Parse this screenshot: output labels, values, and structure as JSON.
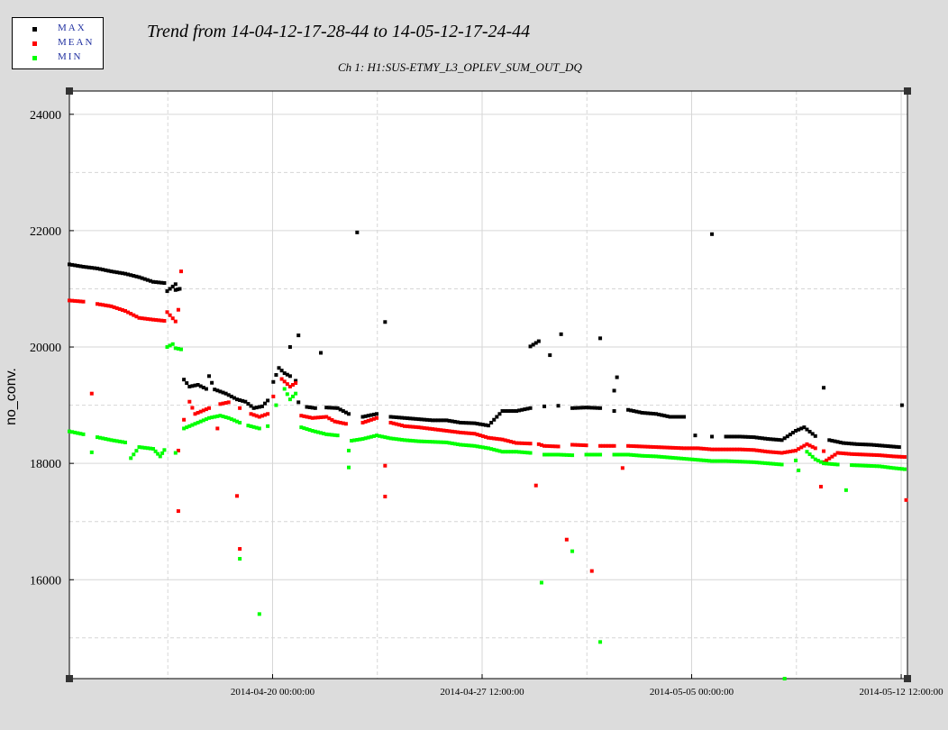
{
  "legend": [
    {
      "label": "MAX",
      "color": "#000000"
    },
    {
      "label": "MEAN",
      "color": "#ff0000"
    },
    {
      "label": "MIN",
      "color": "#00ff00"
    }
  ],
  "chart_data": {
    "type": "scatter",
    "title": "Trend from 14-04-12-17-28-44 to 14-05-12-17-24-44",
    "subtitle": "Ch 1: H1:SUS-ETMY_L3_OPLEV_SUM_OUT_DQ",
    "xlabel": "",
    "ylabel": "no_conv.",
    "x_unit": "days since 2014-04-12 17:28:44",
    "xlim": [
      0,
      29.997
    ],
    "ylim": [
      14300,
      24400
    ],
    "grid": true,
    "legend_position": "top-left",
    "y_ticks": [
      16000,
      18000,
      20000,
      22000,
      24000
    ],
    "x_ticks": [
      {
        "x": 7.273,
        "label": "2014-04-20 00:00:00"
      },
      {
        "x": 14.773,
        "label": "2014-04-27 12:00:00"
      },
      {
        "x": 22.273,
        "label": "2014-05-05 00:00:00"
      },
      {
        "x": 29.773,
        "label": "2014-05-12 12:00:00"
      }
    ],
    "series": [
      {
        "name": "MAX",
        "color": "#000000",
        "points": [
          [
            0.0,
            21420
          ],
          [
            0.5,
            21380
          ],
          [
            1.0,
            21350
          ],
          [
            1.5,
            21300
          ],
          [
            2.0,
            21260
          ],
          [
            2.5,
            21200
          ],
          [
            3.0,
            21120
          ],
          [
            3.4,
            21100
          ],
          [
            3.8,
            21080
          ],
          [
            3.5,
            20960
          ],
          [
            3.8,
            20980
          ],
          [
            3.95,
            21000
          ],
          [
            4.1,
            19440
          ],
          [
            4.3,
            19320
          ],
          [
            4.6,
            19350
          ],
          [
            4.9,
            19280
          ],
          [
            5.2,
            19270
          ],
          [
            5.6,
            19200
          ],
          [
            6.0,
            19100
          ],
          [
            6.3,
            19060
          ],
          [
            6.6,
            18950
          ],
          [
            6.9,
            18980
          ],
          [
            7.1,
            19080
          ],
          [
            7.3,
            19400
          ],
          [
            7.5,
            19640
          ],
          [
            7.7,
            19550
          ],
          [
            7.9,
            19500
          ],
          [
            8.1,
            19420
          ],
          [
            8.2,
            19050
          ],
          [
            8.5,
            18970
          ],
          [
            8.8,
            18950
          ],
          [
            9.2,
            18960
          ],
          [
            9.6,
            18950
          ],
          [
            9.8,
            18900
          ],
          [
            10.0,
            18850
          ],
          [
            10.5,
            18800
          ],
          [
            11.0,
            18850
          ],
          [
            11.5,
            18800
          ],
          [
            12.0,
            18780
          ],
          [
            12.5,
            18760
          ],
          [
            13.0,
            18740
          ],
          [
            13.5,
            18740
          ],
          [
            14.0,
            18700
          ],
          [
            14.5,
            18690
          ],
          [
            15.0,
            18650
          ],
          [
            15.5,
            18900
          ],
          [
            16.0,
            18900
          ],
          [
            16.5,
            18950
          ],
          [
            17.0,
            18980
          ],
          [
            17.5,
            18990
          ],
          [
            18.0,
            18950
          ],
          [
            18.5,
            18960
          ],
          [
            19.0,
            18950
          ],
          [
            19.5,
            18900
          ],
          [
            20.0,
            18920
          ],
          [
            20.5,
            18870
          ],
          [
            21.0,
            18850
          ],
          [
            21.5,
            18800
          ],
          [
            22.0,
            18800
          ],
          [
            22.4,
            18480
          ],
          [
            23.0,
            18460
          ],
          [
            23.5,
            18460
          ],
          [
            24.0,
            18460
          ],
          [
            24.5,
            18450
          ],
          [
            25.0,
            18420
          ],
          [
            25.5,
            18400
          ],
          [
            26.0,
            18560
          ],
          [
            26.3,
            18620
          ],
          [
            26.7,
            18470
          ],
          [
            27.2,
            18400
          ],
          [
            27.7,
            18350
          ],
          [
            28.2,
            18330
          ],
          [
            28.7,
            18320
          ],
          [
            29.2,
            18300
          ],
          [
            29.7,
            18280
          ],
          [
            5.0,
            19500
          ],
          [
            7.9,
            20000
          ],
          [
            8.2,
            20200
          ],
          [
            9.0,
            19900
          ],
          [
            10.3,
            21970
          ],
          [
            11.3,
            20430
          ],
          [
            16.5,
            20010
          ],
          [
            16.8,
            20100
          ],
          [
            17.2,
            19860
          ],
          [
            17.6,
            20220
          ],
          [
            19.0,
            20150
          ],
          [
            19.6,
            19480
          ],
          [
            23.0,
            21940
          ],
          [
            27.0,
            19300
          ],
          [
            19.5,
            19250
          ],
          [
            29.8,
            19000
          ]
        ]
      },
      {
        "name": "MEAN",
        "color": "#ff0000",
        "points": [
          [
            0.0,
            20800
          ],
          [
            0.5,
            20780
          ],
          [
            1.0,
            20740
          ],
          [
            1.5,
            20700
          ],
          [
            2.0,
            20620
          ],
          [
            2.5,
            20500
          ],
          [
            3.0,
            20470
          ],
          [
            3.4,
            20450
          ],
          [
            3.8,
            20440
          ],
          [
            3.5,
            20600
          ],
          [
            3.9,
            20640
          ],
          [
            4.1,
            18750
          ],
          [
            4.5,
            18850
          ],
          [
            5.0,
            18950
          ],
          [
            5.4,
            19020
          ],
          [
            5.7,
            19050
          ],
          [
            6.1,
            18950
          ],
          [
            6.5,
            18850
          ],
          [
            6.8,
            18800
          ],
          [
            7.1,
            18850
          ],
          [
            7.3,
            19150
          ],
          [
            7.6,
            19450
          ],
          [
            7.9,
            19320
          ],
          [
            8.1,
            19380
          ],
          [
            8.3,
            18820
          ],
          [
            8.7,
            18780
          ],
          [
            9.2,
            18800
          ],
          [
            9.5,
            18720
          ],
          [
            9.9,
            18680
          ],
          [
            10.5,
            18700
          ],
          [
            11.0,
            18780
          ],
          [
            11.5,
            18700
          ],
          [
            12.0,
            18640
          ],
          [
            12.5,
            18620
          ],
          [
            13.0,
            18590
          ],
          [
            13.5,
            18560
          ],
          [
            14.0,
            18530
          ],
          [
            14.5,
            18510
          ],
          [
            15.0,
            18440
          ],
          [
            15.5,
            18410
          ],
          [
            16.0,
            18350
          ],
          [
            16.5,
            18340
          ],
          [
            17.0,
            18300
          ],
          [
            17.5,
            18290
          ],
          [
            18.0,
            18320
          ],
          [
            18.5,
            18310
          ],
          [
            19.0,
            18300
          ],
          [
            19.5,
            18300
          ],
          [
            20.0,
            18300
          ],
          [
            20.5,
            18290
          ],
          [
            21.0,
            18280
          ],
          [
            21.5,
            18270
          ],
          [
            22.0,
            18260
          ],
          [
            22.5,
            18260
          ],
          [
            23.0,
            18240
          ],
          [
            23.5,
            18240
          ],
          [
            24.0,
            18240
          ],
          [
            24.5,
            18230
          ],
          [
            25.0,
            18200
          ],
          [
            25.5,
            18180
          ],
          [
            26.0,
            18220
          ],
          [
            26.4,
            18330
          ],
          [
            26.7,
            18260
          ],
          [
            27.0,
            18210
          ],
          [
            27.5,
            18180
          ],
          [
            28.0,
            18160
          ],
          [
            28.5,
            18150
          ],
          [
            29.0,
            18140
          ],
          [
            29.5,
            18120
          ],
          [
            29.9,
            18110
          ],
          [
            0.8,
            19200
          ],
          [
            3.9,
            18220
          ],
          [
            4.0,
            21300
          ],
          [
            3.9,
            17180
          ],
          [
            4.3,
            19060
          ],
          [
            5.3,
            18600
          ],
          [
            6.0,
            17440
          ],
          [
            6.1,
            16530
          ],
          [
            11.3,
            17960
          ],
          [
            11.3,
            17430
          ],
          [
            16.7,
            17620
          ],
          [
            16.8,
            18330
          ],
          [
            17.8,
            16690
          ],
          [
            18.7,
            16150
          ],
          [
            19.8,
            17920
          ],
          [
            27.0,
            18020
          ],
          [
            26.9,
            17600
          ],
          [
            29.95,
            17370
          ]
        ]
      },
      {
        "name": "MIN",
        "color": "#00ff00",
        "points": [
          [
            0.0,
            18550
          ],
          [
            0.5,
            18500
          ],
          [
            1.0,
            18450
          ],
          [
            1.5,
            18400
          ],
          [
            2.0,
            18360
          ],
          [
            2.5,
            18280
          ],
          [
            3.0,
            18250
          ],
          [
            3.4,
            18230
          ],
          [
            3.8,
            18180
          ],
          [
            3.25,
            18120
          ],
          [
            3.5,
            20000
          ],
          [
            3.8,
            19980
          ],
          [
            4.0,
            19960
          ],
          [
            4.1,
            18600
          ],
          [
            4.5,
            18680
          ],
          [
            5.0,
            18780
          ],
          [
            5.4,
            18820
          ],
          [
            5.7,
            18780
          ],
          [
            6.1,
            18700
          ],
          [
            6.4,
            18650
          ],
          [
            6.8,
            18600
          ],
          [
            7.1,
            18640
          ],
          [
            7.4,
            19000
          ],
          [
            7.7,
            19280
          ],
          [
            7.9,
            19100
          ],
          [
            8.1,
            19200
          ],
          [
            8.3,
            18620
          ],
          [
            8.7,
            18560
          ],
          [
            9.2,
            18500
          ],
          [
            9.6,
            18480
          ],
          [
            10.1,
            18390
          ],
          [
            10.5,
            18420
          ],
          [
            11.0,
            18480
          ],
          [
            11.5,
            18430
          ],
          [
            12.0,
            18400
          ],
          [
            12.5,
            18380
          ],
          [
            13.0,
            18370
          ],
          [
            13.5,
            18360
          ],
          [
            14.0,
            18320
          ],
          [
            14.5,
            18300
          ],
          [
            15.0,
            18260
          ],
          [
            15.5,
            18200
          ],
          [
            16.0,
            18200
          ],
          [
            16.5,
            18180
          ],
          [
            17.0,
            18150
          ],
          [
            17.5,
            18150
          ],
          [
            18.0,
            18140
          ],
          [
            18.5,
            18150
          ],
          [
            19.0,
            18150
          ],
          [
            19.5,
            18150
          ],
          [
            20.0,
            18150
          ],
          [
            20.5,
            18130
          ],
          [
            21.0,
            18120
          ],
          [
            21.5,
            18100
          ],
          [
            22.0,
            18080
          ],
          [
            22.5,
            18060
          ],
          [
            23.0,
            18040
          ],
          [
            23.5,
            18040
          ],
          [
            24.0,
            18030
          ],
          [
            24.5,
            18020
          ],
          [
            25.0,
            18000
          ],
          [
            25.5,
            17980
          ],
          [
            26.0,
            18050
          ],
          [
            26.4,
            18200
          ],
          [
            26.7,
            18070
          ],
          [
            27.0,
            18000
          ],
          [
            27.5,
            17980
          ],
          [
            28.0,
            17970
          ],
          [
            28.5,
            17960
          ],
          [
            29.0,
            17950
          ],
          [
            29.5,
            17920
          ],
          [
            29.9,
            17900
          ],
          [
            0.8,
            18190
          ],
          [
            2.2,
            18090
          ],
          [
            3.7,
            20050
          ],
          [
            6.1,
            16360
          ],
          [
            6.8,
            15410
          ],
          [
            10.0,
            18220
          ],
          [
            10.0,
            17930
          ],
          [
            16.9,
            15950
          ],
          [
            18.0,
            16490
          ],
          [
            19.0,
            14930
          ],
          [
            25.6,
            14300
          ],
          [
            26.1,
            17880
          ],
          [
            27.8,
            17540
          ]
        ]
      }
    ]
  }
}
